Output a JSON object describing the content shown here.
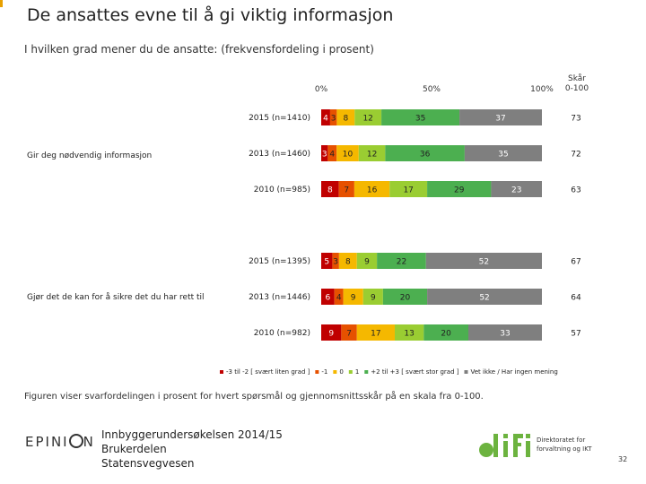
{
  "title": "De ansattes evne til å gi viktig informasjon",
  "subtitle": "I hvilken grad mener du de ansatte: (frekvensfordeling i prosent)",
  "footnote": "Figuren viser svarfordelingen i prosent for hvert spørsmål og gjennomsnittsskår på en skala fra 0-100.",
  "footer": {
    "brand": "EPINION",
    "lines": [
      "Innbyggerundersøkelsen 2014/15",
      "Brukerdelen",
      "Statensvegvesen"
    ],
    "difi_text": [
      "Direktoratet for",
      "forvaltning og IKT"
    ],
    "page_number": "32"
  },
  "chart_data": {
    "type": "bar",
    "stacked": true,
    "orientation": "horizontal",
    "x_ticks": [
      "0%",
      "50%",
      "100%"
    ],
    "score_header": "Skår 0-100",
    "xlim": [
      0,
      100
    ],
    "legend_position": "bottom",
    "series": [
      {
        "name": "-3 til -2 [ svært liten grad ]",
        "color": "#c00000"
      },
      {
        "name": "-1",
        "color": "#e65100"
      },
      {
        "name": "0",
        "color": "#f5b800"
      },
      {
        "name": "1",
        "color": "#9acd32"
      },
      {
        "name": "+2 til +3 [ svært stor grad ]",
        "color": "#4caf50"
      },
      {
        "name": "Vet ikke / Har ingen mening",
        "color": "#7f7f7f"
      }
    ],
    "groups": [
      {
        "label": "Gir deg nødvendig informasjon",
        "rows": [
          {
            "label": "2015 (n=1410)",
            "values": [
              4,
              3,
              8,
              12,
              35,
              37
            ],
            "score": "73"
          },
          {
            "label": "2013 (n=1460)",
            "values": [
              3,
              4,
              10,
              12,
              36,
              35
            ],
            "score": "72"
          },
          {
            "label": "2010 (n=985)",
            "values": [
              8,
              7,
              16,
              17,
              29,
              23
            ],
            "score": "63"
          }
        ]
      },
      {
        "label": "Gjør det de kan for å sikre det du har rett til",
        "rows": [
          {
            "label": "2015 (n=1395)",
            "values": [
              5,
              3,
              8,
              9,
              22,
              52
            ],
            "score": "67"
          },
          {
            "label": "2013 (n=1446)",
            "values": [
              6,
              4,
              9,
              9,
              20,
              52
            ],
            "score": "64"
          },
          {
            "label": "2010 (n=982)",
            "values": [
              9,
              7,
              17,
              13,
              20,
              33
            ],
            "score": "57"
          }
        ]
      }
    ]
  }
}
